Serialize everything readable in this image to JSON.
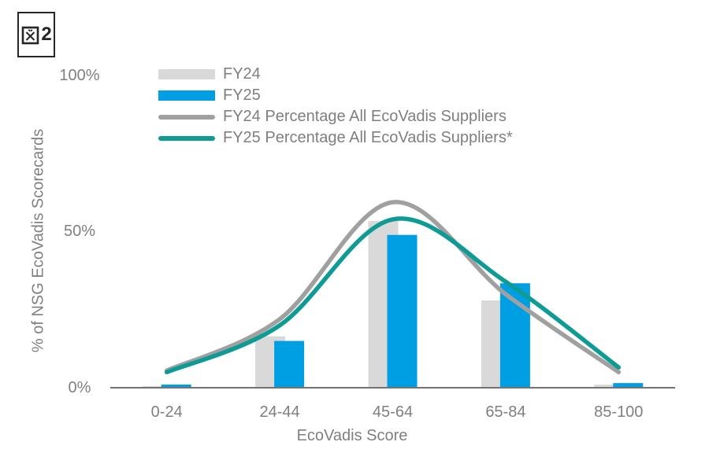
{
  "figure_label": "図2",
  "chart_data": {
    "type": "combo",
    "title": "",
    "categories": [
      "0-24",
      "24-44",
      "45-64",
      "65-84",
      "85-100"
    ],
    "series": [
      {
        "name": "FY24",
        "type": "bar",
        "color": "#d9d9d9",
        "values": [
          0.5,
          16.5,
          53.5,
          28,
          1
        ]
      },
      {
        "name": "FY25",
        "type": "bar",
        "color": "#009fe3",
        "values": [
          1,
          15,
          49,
          33.5,
          1.5
        ]
      },
      {
        "name": "FY24 Percentage All EcoVadis Suppliers",
        "type": "line-smooth",
        "color": "#a0a0a0",
        "values": [
          5.5,
          22,
          59.5,
          30,
          5
        ]
      },
      {
        "name": "FY25 Percentage All EcoVadis Suppliers*",
        "type": "line-smooth",
        "color": "#0f9b95",
        "values": [
          5,
          20,
          54,
          34,
          6.5
        ]
      }
    ],
    "xlabel": "EcoVadis Score",
    "ylabel": "% of NSG EcoVadis Scorecards",
    "y_ticks": [
      {
        "label": "0%",
        "value": 0
      },
      {
        "label": "50%",
        "value": 50
      },
      {
        "label": "100%",
        "value": 100
      }
    ],
    "ylim": [
      0,
      100
    ],
    "grid": false,
    "legend_position": "top-left-inside",
    "axis_line_color": "#737373",
    "text_color": "#7f7f7f"
  }
}
